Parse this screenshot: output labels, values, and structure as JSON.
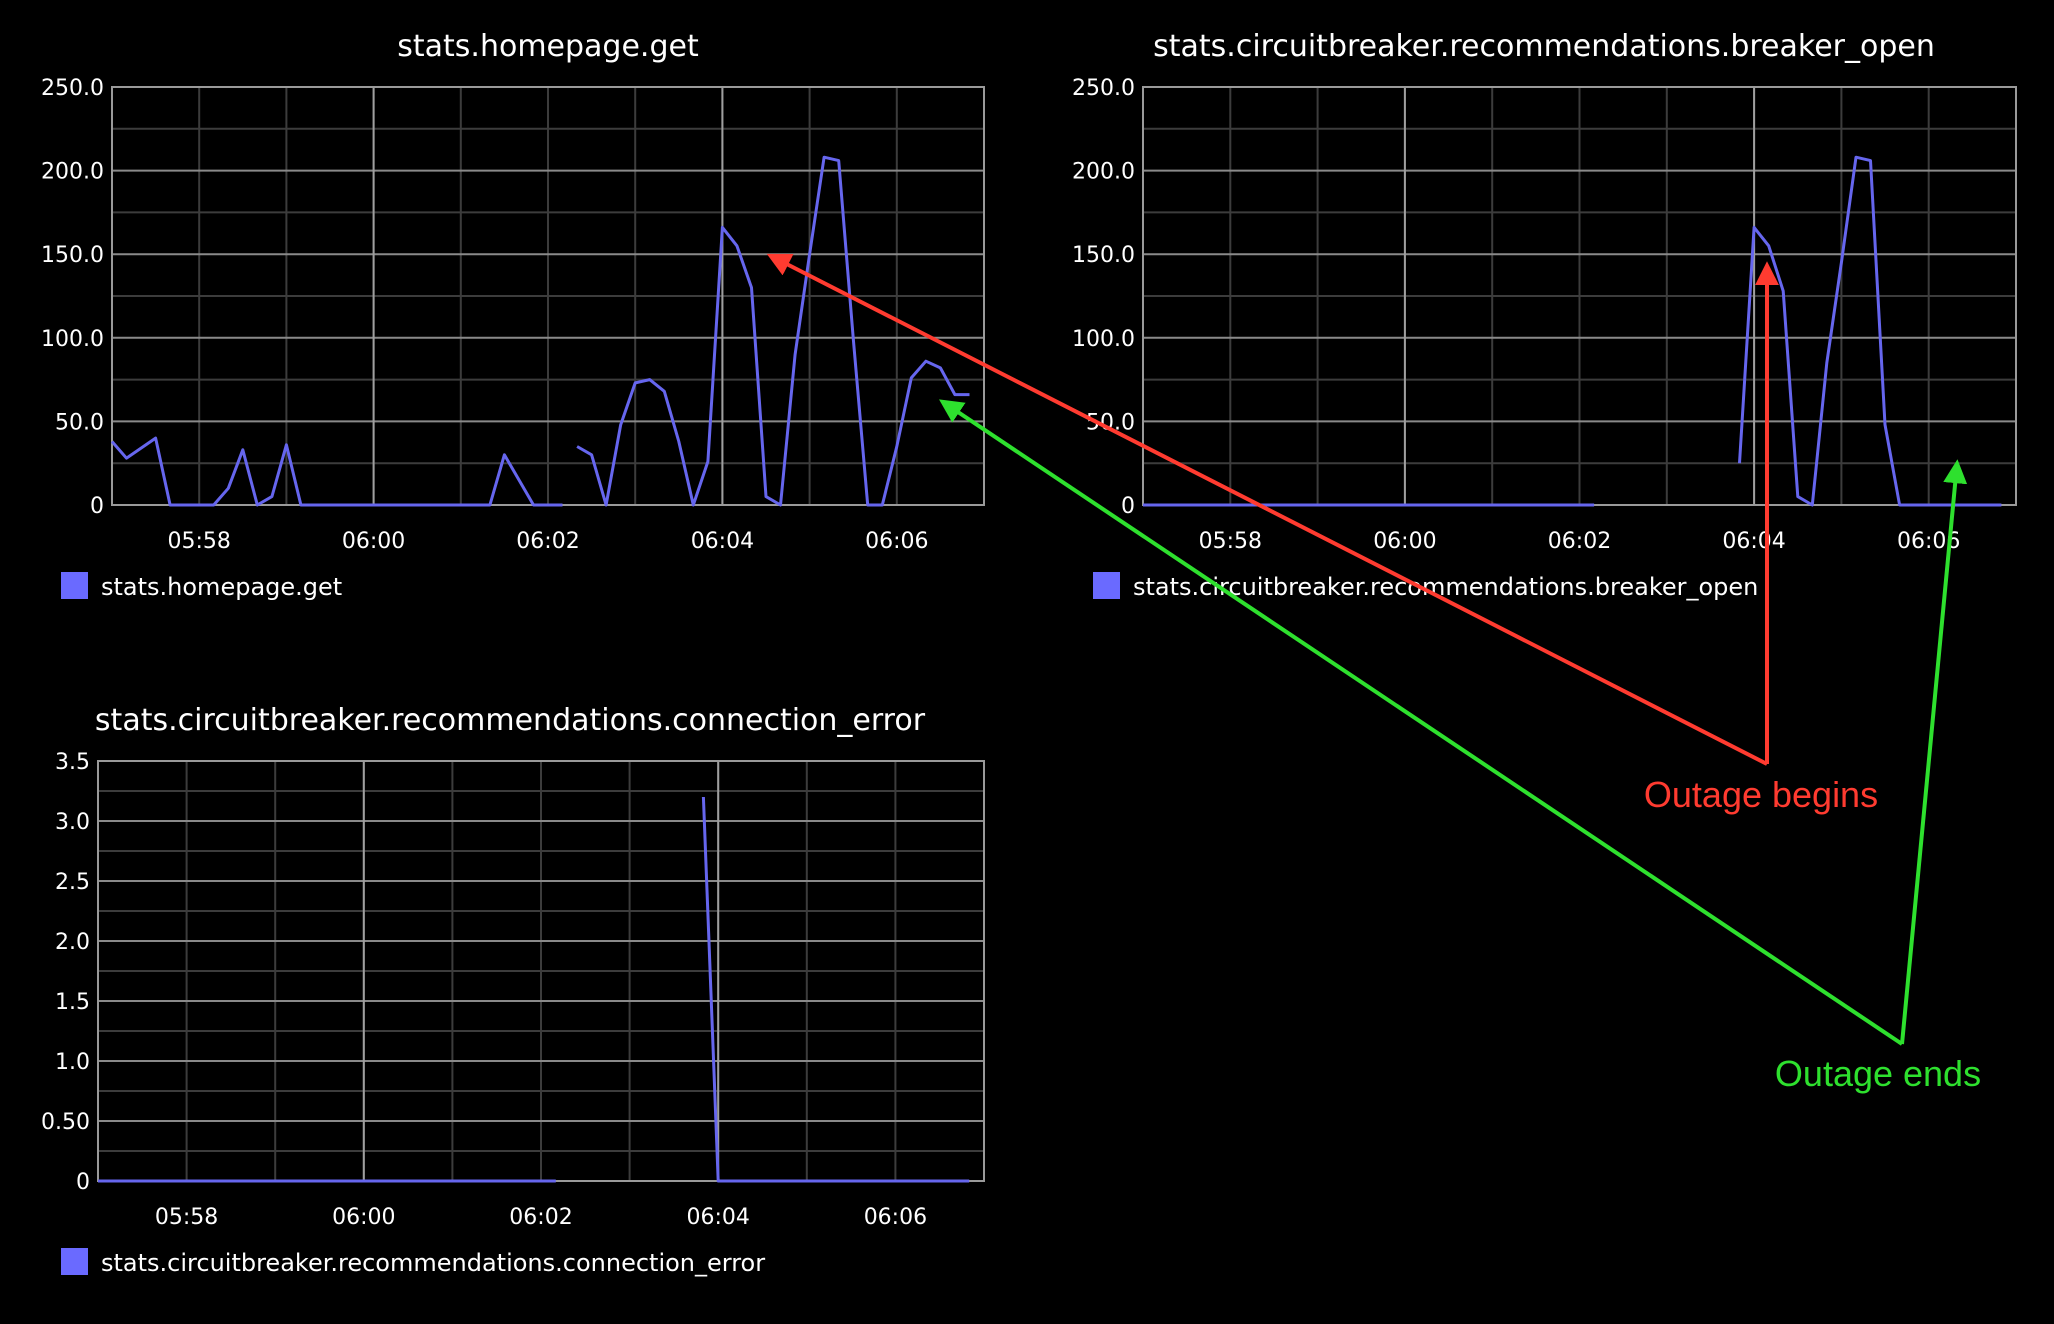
{
  "colors": {
    "background": "#000000",
    "plot_border": "#9a9a9a",
    "grid_major": "#8a8a8a",
    "grid_minor": "#3c3c3c",
    "text": "#ffffff",
    "series": "#6666ee",
    "legend_swatch": "#6a6aff",
    "outage_begins": "#ff3b30",
    "outage_ends": "#2ee02e"
  },
  "annotations": {
    "outage_begins": "Outage begins",
    "outage_ends": "Outage ends"
  },
  "chart_data": [
    {
      "type": "line",
      "title": "stats.homepage.get",
      "legend": [
        "stats.homepage.get"
      ],
      "x_unit": "minutes after 05:57 (time axis)",
      "x_ticks": [
        "05:58",
        "06:00",
        "06:02",
        "06:04",
        "06:06"
      ],
      "y_ticks": [
        "0",
        "50.0",
        "100.0",
        "150.0",
        "200.0",
        "250.0"
      ],
      "xlim": [
        "05:57",
        "06:07"
      ],
      "ylim": [
        0,
        250
      ],
      "grid": true,
      "series": [
        {
          "segments": [
            [
              [
                "05:57:00",
                38
              ],
              [
                "05:57:10",
                28
              ],
              [
                "05:57:30",
                40
              ],
              [
                "05:57:40",
                0
              ],
              [
                "05:58:10",
                0
              ],
              [
                "05:58:20",
                10
              ],
              [
                "05:58:30",
                33
              ],
              [
                "05:58:40",
                0
              ],
              [
                "05:58:50",
                5
              ],
              [
                "05:59:00",
                36
              ],
              [
                "05:59:10",
                0
              ],
              [
                "06:01:20",
                0
              ],
              [
                "06:01:30",
                30
              ],
              [
                "06:01:50",
                0
              ],
              [
                "06:02:10",
                0
              ]
            ],
            [
              [
                "06:02:20",
                35
              ],
              [
                "06:02:30",
                30
              ],
              [
                "06:02:40",
                0
              ],
              [
                "06:02:50",
                48
              ],
              [
                "06:03:00",
                73
              ],
              [
                "06:03:10",
                75
              ],
              [
                "06:03:20",
                68
              ],
              [
                "06:03:30",
                38
              ],
              [
                "06:03:40",
                0
              ],
              [
                "06:03:50",
                26
              ],
              [
                "06:04:00",
                166
              ],
              [
                "06:04:10",
                155
              ],
              [
                "06:04:20",
                130
              ],
              [
                "06:04:30",
                5
              ],
              [
                "06:04:40",
                0
              ],
              [
                "06:04:50",
                90
              ],
              [
                "06:05:00",
                150
              ],
              [
                "06:05:10",
                208
              ],
              [
                "06:05:20",
                206
              ],
              [
                "06:05:30",
                100
              ],
              [
                "06:05:40",
                0
              ],
              [
                "06:05:50",
                0
              ],
              [
                "06:06:00",
                35
              ],
              [
                "06:06:10",
                76
              ],
              [
                "06:06:20",
                86
              ],
              [
                "06:06:30",
                82
              ],
              [
                "06:06:40",
                66
              ],
              [
                "06:06:50",
                66
              ]
            ]
          ]
        }
      ]
    },
    {
      "type": "line",
      "title": "stats.circuitbreaker.recommendations.breaker_open",
      "legend": [
        "stats.circuitbreaker.recommendations.breaker_open"
      ],
      "x_ticks": [
        "05:58",
        "06:00",
        "06:02",
        "06:04",
        "06:06"
      ],
      "y_ticks": [
        "0",
        "50.0",
        "100.0",
        "150.0",
        "200.0",
        "250.0"
      ],
      "xlim": [
        "05:57",
        "06:07"
      ],
      "ylim": [
        0,
        250
      ],
      "grid": true,
      "series": [
        {
          "segments": [
            [
              [
                "05:57:00",
                0
              ],
              [
                "06:02:10",
                0
              ]
            ],
            [
              [
                "06:03:50",
                25
              ],
              [
                "06:04:00",
                166
              ],
              [
                "06:04:10",
                155
              ],
              [
                "06:04:20",
                128
              ],
              [
                "06:04:30",
                5
              ],
              [
                "06:04:40",
                0
              ],
              [
                "06:04:50",
                85
              ],
              [
                "06:05:00",
                145
              ],
              [
                "06:05:10",
                208
              ],
              [
                "06:05:20",
                206
              ],
              [
                "06:05:30",
                48
              ],
              [
                "06:05:40",
                0
              ],
              [
                "06:06:50",
                0
              ]
            ]
          ]
        }
      ]
    },
    {
      "type": "line",
      "title": "stats.circuitbreaker.recommendations.connection_error",
      "legend": [
        "stats.circuitbreaker.recommendations.connection_error"
      ],
      "x_ticks": [
        "05:58",
        "06:00",
        "06:02",
        "06:04",
        "06:06"
      ],
      "y_ticks": [
        "0",
        "0.50",
        "1.0",
        "1.5",
        "2.0",
        "2.5",
        "3.0",
        "3.5"
      ],
      "xlim": [
        "05:57",
        "06:07"
      ],
      "ylim": [
        0,
        3.5
      ],
      "grid": true,
      "series": [
        {
          "segments": [
            [
              [
                "05:57:00",
                0
              ],
              [
                "06:02:10",
                0
              ]
            ],
            [
              [
                "06:03:50",
                3.2
              ],
              [
                "06:04:00",
                0
              ],
              [
                "06:06:50",
                0
              ]
            ]
          ]
        }
      ]
    }
  ]
}
